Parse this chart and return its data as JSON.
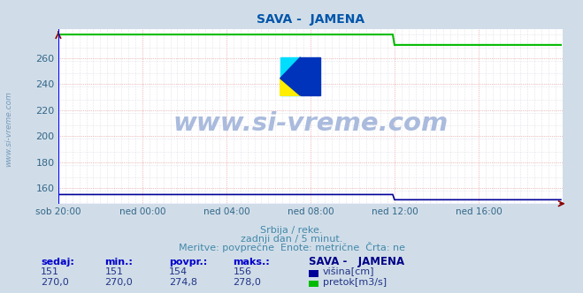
{
  "title": "SAVA -  JAMENA",
  "title_color": "#0055aa",
  "bg_color": "#d0dde8",
  "plot_bg_color": "#ffffff",
  "grid_color": "#dd8888",
  "grid_color_minor": "#ccccdd",
  "xlabel_ticks": [
    "sob 20:00",
    "ned 00:00",
    "ned 04:00",
    "ned 08:00",
    "ned 12:00",
    "ned 16:00"
  ],
  "ylabel_ticks": [
    160,
    180,
    200,
    220,
    240,
    260
  ],
  "ylim": [
    148,
    282
  ],
  "xlim": [
    0,
    288
  ],
  "tick_positions": [
    0,
    48,
    96,
    144,
    192,
    240
  ],
  "visina_color": "#000099",
  "pretok_color": "#00bb00",
  "watermark_text": "www.si-vreme.com",
  "watermark_color": "#aabbdd",
  "sidebar_text": "www.si-vreme.com",
  "sidebar_color": "#7799bb",
  "subtitle1": "Srbija / reke.",
  "subtitle2": "zadnji dan / 5 minut.",
  "subtitle3": "Meritve: povprečne  Enote: metrične  Črta: ne",
  "subtitle_color": "#4488aa",
  "legend_title": "SAVA -   JAMENA",
  "legend_title_color": "#000088",
  "stat_headers": [
    "sedaj:",
    "min.:",
    "povpr.:",
    "maks.:"
  ],
  "stat_header_color": "#0000cc",
  "stat_visina": [
    "151",
    "151",
    "154",
    "156"
  ],
  "stat_pretok": [
    "270,0",
    "270,0",
    "274,8",
    "278,0"
  ],
  "stat_color": "#223388",
  "visina_label": "višina[cm]",
  "pretok_label": "pretok[m3/s]",
  "n_points": 288,
  "visina_value_start": 155,
  "visina_value_end": 151,
  "pretok_value_start": 278,
  "pretok_value_end": 270,
  "drop_point": 192
}
